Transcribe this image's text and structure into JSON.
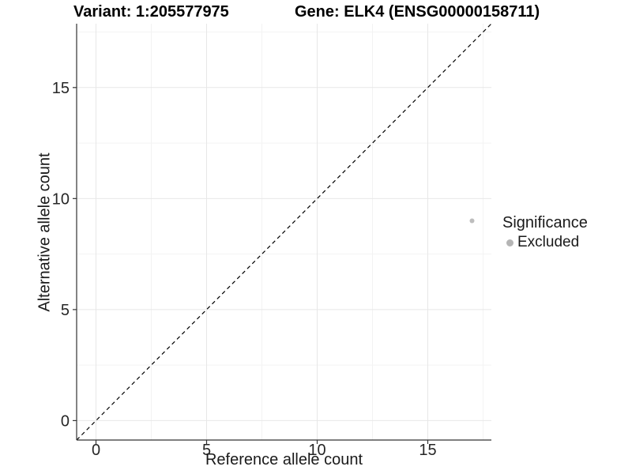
{
  "header": {
    "variant_title": "Variant: 1:205577975",
    "gene_title": "Gene: ELK4 (ENSG00000158711)"
  },
  "chart_data": {
    "type": "scatter",
    "title": "Variant: 1:205577975   Gene: ELK4 (ENSG00000158711)",
    "xlabel": "Reference allele count",
    "ylabel": "Alternative allele count",
    "xlim": [
      -0.875,
      17.875
    ],
    "ylim": [
      -0.875,
      17.875
    ],
    "x_ticks": [
      0,
      5,
      10,
      15
    ],
    "y_ticks": [
      0,
      5,
      10,
      15
    ],
    "x_minor_ticks": [
      2.5,
      7.5,
      12.5,
      17.5
    ],
    "y_minor_ticks": [
      2.5,
      7.5,
      12.5,
      17.5
    ],
    "grid": true,
    "series": [
      {
        "name": "Excluded",
        "points": [
          [
            17,
            9
          ]
        ],
        "color": "#bdbdbd",
        "point_radius": 3
      }
    ],
    "reference_line": {
      "type": "identity",
      "slope": 1,
      "intercept": 0,
      "style": "dashed",
      "color": "#000000"
    },
    "legend": {
      "position": "right",
      "title": "Significance",
      "items": [
        {
          "label": "Excluded",
          "color": "#b5b5b5"
        }
      ]
    },
    "colors": {
      "axis_line": "#333333",
      "tick_mark": "#333333",
      "tick_label": "#262626",
      "major_grid": "#e7e7e7",
      "minor_grid": "#f3f3f3",
      "background": "#ffffff"
    }
  }
}
